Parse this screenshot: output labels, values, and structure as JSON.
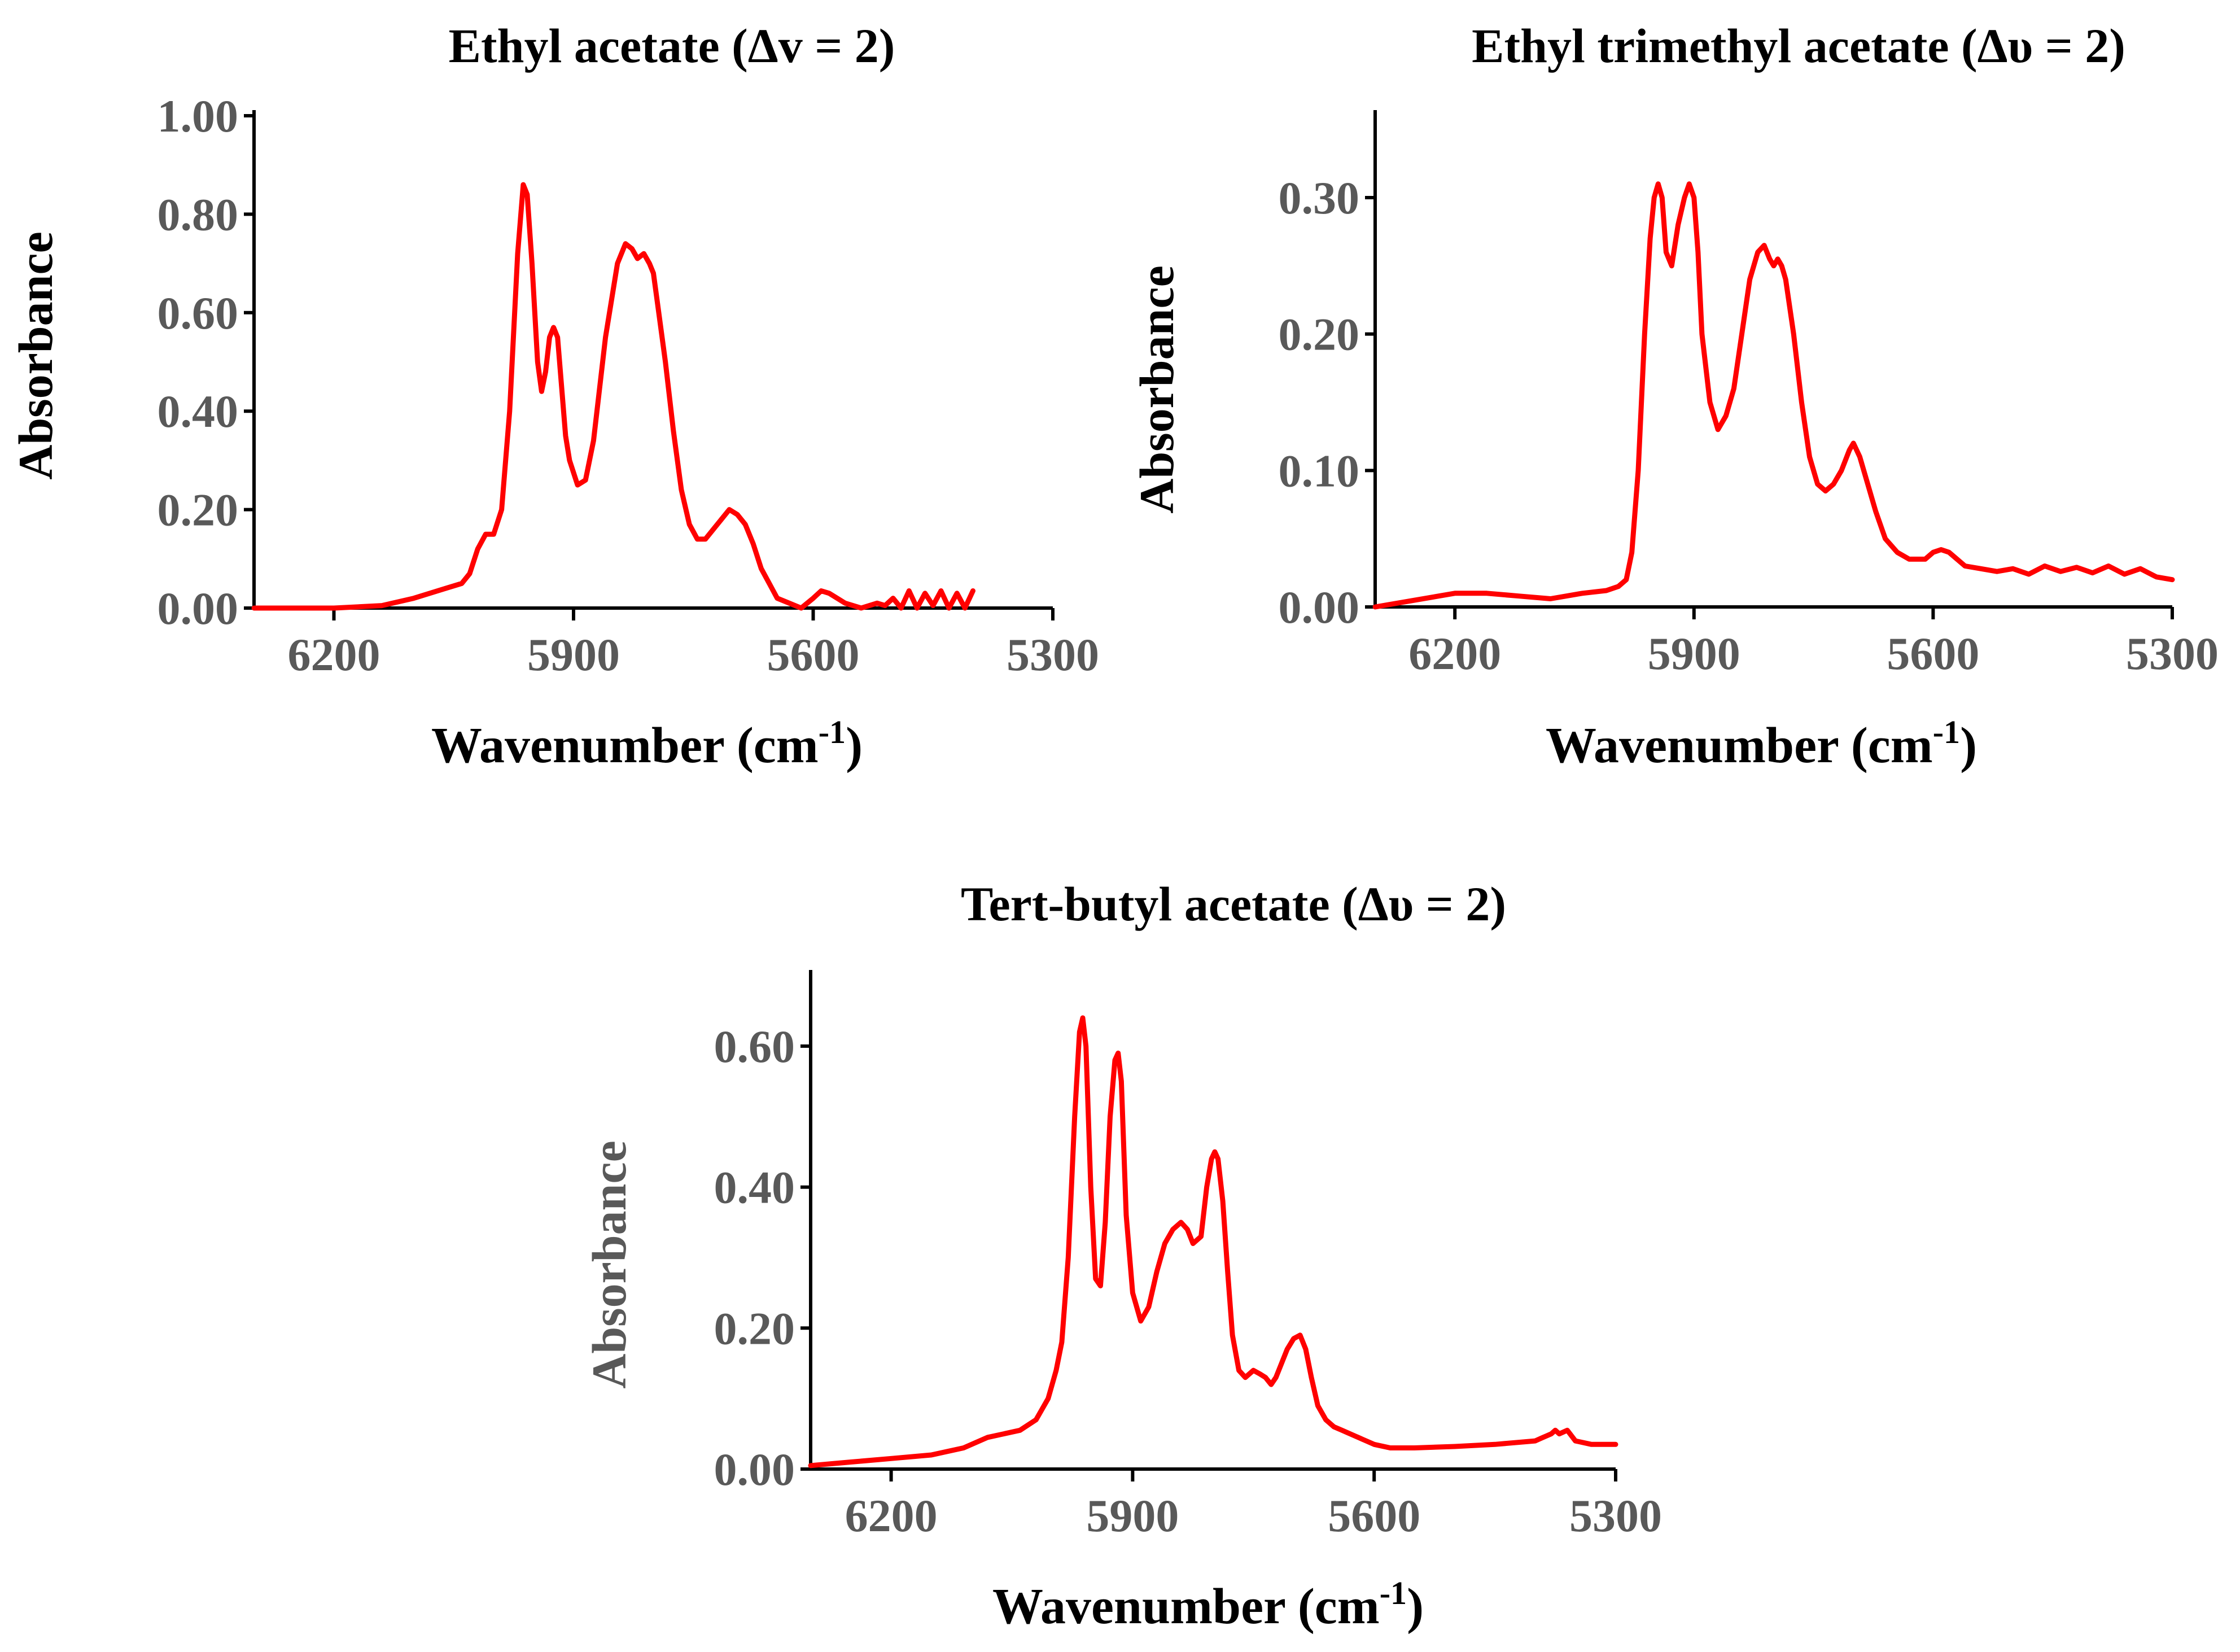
{
  "chart_data": [
    {
      "type": "line",
      "title": "Ethyl acetate (Δv = 2)",
      "xlabel": "Wavenumber (cm",
      "xlabel_sup": "-1",
      "xlabel_close": ")",
      "ylabel": "Absorbance",
      "ylabel_color": "#000000",
      "xlim": [
        6300,
        5300
      ],
      "ylim": [
        0,
        1.0
      ],
      "xticks": [
        "6200",
        "5900",
        "5600",
        "5300"
      ],
      "yticks": [
        "0.00",
        "0.20",
        "0.40",
        "0.60",
        "0.80",
        "1.00"
      ],
      "series": [
        {
          "name": "Ethyl acetate",
          "color": "#ff0000",
          "x": [
            6300,
            6200,
            6140,
            6100,
            6080,
            6060,
            6040,
            6030,
            6020,
            6010,
            6000,
            5990,
            5980,
            5970,
            5963,
            5958,
            5952,
            5945,
            5940,
            5935,
            5930,
            5925,
            5920,
            5915,
            5910,
            5905,
            5895,
            5885,
            5875,
            5860,
            5845,
            5835,
            5827,
            5820,
            5812,
            5805,
            5800,
            5795,
            5785,
            5775,
            5765,
            5755,
            5745,
            5735,
            5725,
            5715,
            5705,
            5695,
            5685,
            5675,
            5665,
            5655,
            5645,
            5630,
            5615,
            5600,
            5590,
            5580,
            5570,
            5560,
            5540,
            5520,
            5510,
            5500,
            5490,
            5480,
            5470,
            5460,
            5450,
            5440,
            5430,
            5420,
            5410,
            5400
          ],
          "y": [
            0.0,
            0.0,
            0.005,
            0.02,
            0.03,
            0.04,
            0.05,
            0.07,
            0.12,
            0.15,
            0.15,
            0.2,
            0.4,
            0.72,
            0.86,
            0.84,
            0.7,
            0.5,
            0.44,
            0.48,
            0.55,
            0.57,
            0.55,
            0.45,
            0.35,
            0.3,
            0.25,
            0.26,
            0.34,
            0.55,
            0.7,
            0.74,
            0.73,
            0.71,
            0.72,
            0.7,
            0.68,
            0.62,
            0.5,
            0.36,
            0.24,
            0.17,
            0.14,
            0.14,
            0.16,
            0.18,
            0.2,
            0.19,
            0.17,
            0.13,
            0.08,
            0.05,
            0.02,
            0.01,
            0.0,
            0.02,
            0.035,
            0.03,
            0.02,
            0.01,
            0.0,
            0.01,
            0.005,
            0.02,
            0.0,
            0.035,
            0.0,
            0.03,
            0.005,
            0.035,
            0.0,
            0.03,
            0.0,
            0.035
          ]
        }
      ]
    },
    {
      "type": "line",
      "title": "Ethyl trimethyl acetate (Δυ = 2)",
      "xlabel": "Wavenumber (cm",
      "xlabel_sup": "-1",
      "xlabel_close": ")",
      "ylabel": "Absorbance",
      "ylabel_color": "#000000",
      "xlim": [
        6300,
        5300
      ],
      "ylim": [
        0,
        0.36
      ],
      "xticks": [
        "6200",
        "5900",
        "5600",
        "5300"
      ],
      "yticks": [
        "0.00",
        "0.10",
        "0.20",
        "0.30"
      ],
      "series": [
        {
          "name": "Ethyl trimethyl acetate",
          "color": "#ff0000",
          "x": [
            6300,
            6250,
            6200,
            6160,
            6120,
            6080,
            6040,
            6010,
            5995,
            5985,
            5978,
            5970,
            5962,
            5955,
            5950,
            5945,
            5940,
            5935,
            5928,
            5920,
            5912,
            5906,
            5900,
            5895,
            5890,
            5880,
            5870,
            5860,
            5850,
            5840,
            5830,
            5820,
            5812,
            5805,
            5800,
            5795,
            5790,
            5785,
            5775,
            5765,
            5755,
            5745,
            5735,
            5725,
            5715,
            5705,
            5700,
            5692,
            5682,
            5672,
            5660,
            5645,
            5630,
            5610,
            5600,
            5590,
            5580,
            5570,
            5560,
            5540,
            5520,
            5500,
            5480,
            5460,
            5440,
            5420,
            5400,
            5380,
            5360,
            5340,
            5320,
            5300
          ],
          "y": [
            0.0,
            0.005,
            0.01,
            0.01,
            0.008,
            0.006,
            0.01,
            0.012,
            0.015,
            0.02,
            0.04,
            0.1,
            0.2,
            0.27,
            0.3,
            0.31,
            0.3,
            0.26,
            0.25,
            0.28,
            0.3,
            0.31,
            0.3,
            0.26,
            0.2,
            0.15,
            0.13,
            0.14,
            0.16,
            0.2,
            0.24,
            0.26,
            0.265,
            0.255,
            0.25,
            0.255,
            0.25,
            0.24,
            0.2,
            0.15,
            0.11,
            0.09,
            0.085,
            0.09,
            0.1,
            0.115,
            0.12,
            0.11,
            0.09,
            0.07,
            0.05,
            0.04,
            0.035,
            0.035,
            0.04,
            0.042,
            0.04,
            0.035,
            0.03,
            0.028,
            0.026,
            0.028,
            0.024,
            0.03,
            0.026,
            0.029,
            0.025,
            0.03,
            0.024,
            0.028,
            0.022,
            0.02
          ]
        }
      ]
    },
    {
      "type": "line",
      "title": "Tert-butyl acetate  (Δυ = 2)",
      "xlabel": "Wavenumber (cm",
      "xlabel_sup": "-1",
      "xlabel_close": ")",
      "ylabel": "Absorbance",
      "ylabel_color": "#595959",
      "xlim": [
        6300,
        5300
      ],
      "ylim": [
        0,
        0.7
      ],
      "xticks": [
        "6200",
        "5900",
        "5600",
        "5300"
      ],
      "yticks": [
        "0.00",
        "0.20",
        "0.40",
        "0.60"
      ],
      "series": [
        {
          "name": "Tert-butyl acetate",
          "color": "#ff0000",
          "x": [
            6300,
            6250,
            6200,
            6150,
            6110,
            6080,
            6060,
            6040,
            6020,
            6005,
            5995,
            5988,
            5980,
            5972,
            5966,
            5962,
            5958,
            5952,
            5946,
            5940,
            5934,
            5928,
            5922,
            5918,
            5914,
            5908,
            5900,
            5890,
            5880,
            5870,
            5860,
            5850,
            5840,
            5832,
            5825,
            5815,
            5808,
            5802,
            5798,
            5794,
            5788,
            5782,
            5776,
            5768,
            5760,
            5750,
            5742,
            5735,
            5728,
            5722,
            5715,
            5708,
            5700,
            5692,
            5685,
            5678,
            5670,
            5660,
            5650,
            5640,
            5620,
            5600,
            5580,
            5550,
            5500,
            5450,
            5400,
            5390,
            5380,
            5375,
            5370,
            5360,
            5350,
            5330,
            5300
          ],
          "y": [
            0.005,
            0.01,
            0.015,
            0.02,
            0.03,
            0.045,
            0.05,
            0.055,
            0.07,
            0.1,
            0.14,
            0.18,
            0.3,
            0.5,
            0.62,
            0.64,
            0.6,
            0.4,
            0.27,
            0.26,
            0.35,
            0.5,
            0.58,
            0.59,
            0.55,
            0.36,
            0.25,
            0.21,
            0.23,
            0.28,
            0.32,
            0.34,
            0.35,
            0.34,
            0.32,
            0.33,
            0.4,
            0.44,
            0.45,
            0.44,
            0.38,
            0.28,
            0.19,
            0.14,
            0.13,
            0.14,
            0.135,
            0.13,
            0.12,
            0.13,
            0.15,
            0.17,
            0.185,
            0.19,
            0.17,
            0.13,
            0.09,
            0.07,
            0.06,
            0.055,
            0.045,
            0.035,
            0.03,
            0.03,
            0.032,
            0.035,
            0.04,
            0.045,
            0.05,
            0.055,
            0.05,
            0.055,
            0.04,
            0.035,
            0.035
          ]
        }
      ]
    }
  ]
}
